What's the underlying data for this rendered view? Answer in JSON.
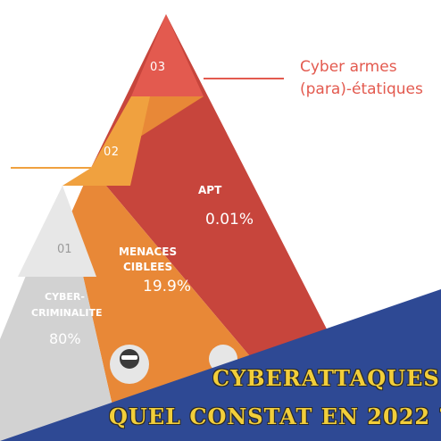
{
  "levels": [
    {
      "id": "01",
      "name_line1": "CYBER-",
      "name_line2": "CRIMINALITE",
      "value": "80%"
    },
    {
      "id": "02",
      "name_line1": "MENACES",
      "name_line2": "CIBLEES",
      "value": "19.9%"
    },
    {
      "id": "03",
      "name": "APT",
      "value": "0.01%"
    }
  ],
  "side_label": {
    "line1": "Cyber armes",
    "line2": "(para)-étatiques"
  },
  "banner": {
    "line1": "CYBERATTAQUES",
    "line2": "QUEL CONSTAT EN 2022 ?"
  },
  "colors": {
    "red": "#e35a4f",
    "dark_red": "#c7453c",
    "orange": "#f0a13f",
    "dark_orange": "#e88837",
    "light_gray": "#e7e7e7",
    "gray": "#d2d2d2",
    "navy": "#2e4994",
    "yellow": "#f2ce3a"
  }
}
